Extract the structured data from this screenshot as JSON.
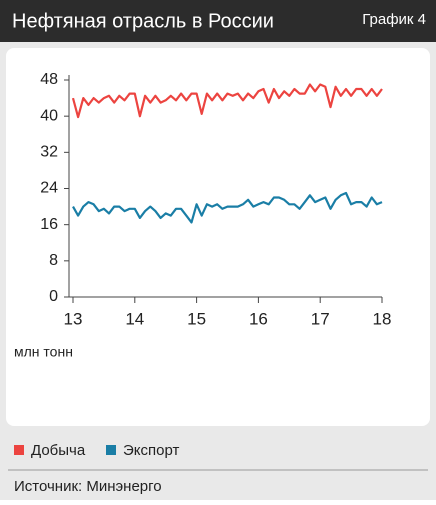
{
  "chart_data": {
    "type": "line",
    "title": "Нефтяная отрасль в России",
    "badge": "График 4",
    "y_label": "млн тонн",
    "source": "Источник: Минэнерго",
    "x": [
      13,
      13.083,
      13.167,
      13.25,
      13.333,
      13.417,
      13.5,
      13.583,
      13.667,
      13.75,
      13.833,
      13.917,
      14,
      14.083,
      14.167,
      14.25,
      14.333,
      14.417,
      14.5,
      14.583,
      14.667,
      14.75,
      14.833,
      14.917,
      15,
      15.083,
      15.167,
      15.25,
      15.333,
      15.417,
      15.5,
      15.583,
      15.667,
      15.75,
      15.833,
      15.917,
      16,
      16.083,
      16.167,
      16.25,
      16.333,
      16.417,
      16.5,
      16.583,
      16.667,
      16.75,
      16.833,
      16.917,
      17,
      17.083,
      17.167,
      17.25,
      17.333,
      17.417,
      17.5,
      17.583,
      17.667,
      17.75,
      17.833,
      17.917,
      18
    ],
    "series": [
      {
        "name": "Добыча",
        "color": "#ec4440",
        "values": [
          44,
          39.8,
          44,
          42.5,
          44,
          43,
          44,
          44.5,
          43,
          44.5,
          43.5,
          45,
          45,
          40,
          44.5,
          43,
          44.5,
          43,
          43.5,
          44.5,
          43.5,
          45,
          43.5,
          45,
          45,
          40.5,
          45,
          43.5,
          45,
          43.5,
          45,
          44.5,
          45,
          43.5,
          45,
          44,
          45.5,
          46,
          43,
          46,
          44,
          45.5,
          44.5,
          46,
          45,
          45,
          47,
          45.5,
          47,
          46.5,
          42,
          46.5,
          44.5,
          46,
          44.5,
          46,
          46,
          44.5,
          46,
          44.5,
          46
        ]
      },
      {
        "name": "Экспорт",
        "color": "#1a7ea6",
        "values": [
          20,
          18,
          20,
          21,
          20.5,
          19,
          19.5,
          18.5,
          20,
          20,
          19,
          19.5,
          19.5,
          17.5,
          19,
          20,
          19,
          17.5,
          18.5,
          18,
          19.5,
          19.5,
          18,
          16.5,
          20.5,
          18,
          20.5,
          20,
          20.5,
          19.5,
          20,
          20,
          20,
          20.5,
          21.5,
          20,
          20.5,
          21,
          20.5,
          22,
          22,
          21.5,
          20.5,
          20.5,
          19.5,
          21,
          22.5,
          21,
          21.5,
          22,
          19.5,
          21.5,
          22.5,
          23,
          20.5,
          21,
          21,
          20,
          22,
          20.5,
          21
        ]
      }
    ],
    "xlim": [
      13,
      18
    ],
    "xticks": [
      13,
      14,
      15,
      16,
      17,
      18
    ],
    "ylim": [
      0,
      48
    ],
    "yticks": [
      0,
      8,
      16,
      24,
      32,
      40,
      48
    ],
    "grid": false
  }
}
